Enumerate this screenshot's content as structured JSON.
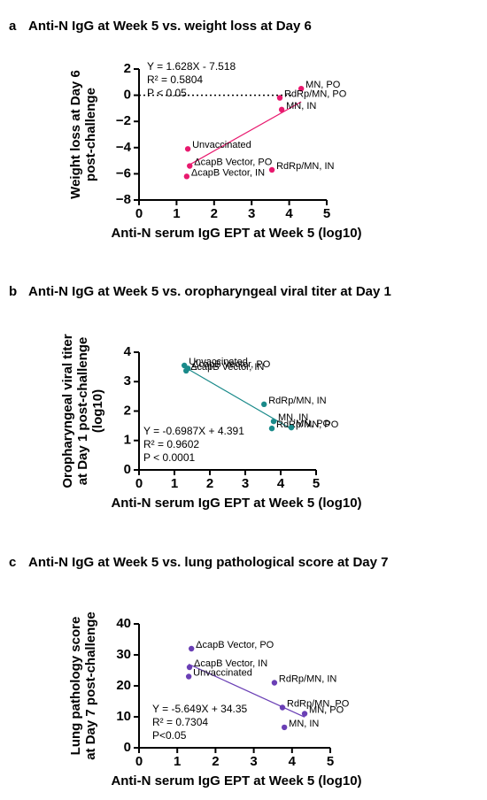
{
  "chart_data": [
    {
      "type": "scatter",
      "panel": "a",
      "title": "Anti-N IgG at Week 5 vs. weight loss at Day 6",
      "xlabel": "Anti-N serum IgG EPT at Week 5 (log10)",
      "ylabel": [
        "Weight loss at Day 6",
        "post-challenge"
      ],
      "point_labels": [
        "MN, PO",
        "RdRp/MN, PO",
        "MN, IN",
        "Unvaccinated",
        "ΔcapB Vector, PO",
        "ΔcapB Vector, IN",
        "RdRp/MN, IN"
      ],
      "x": [
        4.32,
        3.75,
        3.8,
        1.3,
        1.35,
        1.27,
        3.54
      ],
      "values": [
        0.5,
        -0.2,
        -1.1,
        -4.1,
        -5.4,
        -6.2,
        -5.7
      ],
      "color": "#e8196e",
      "fit_line": {
        "x": [
          1.35,
          4.32
        ],
        "y": [
          -5.3,
          -0.5
        ]
      },
      "hline": 0,
      "annotations": [
        "Y = 1.628X - 7.518",
        "R² = 0.5804",
        "P < 0.05"
      ],
      "xlim": [
        0,
        5
      ],
      "xticks": [
        0,
        1,
        2,
        3,
        4,
        5
      ],
      "ylim": [
        -8,
        2
      ],
      "yticks": [
        {
          "value": -8,
          "label": "−8"
        },
        {
          "value": -6,
          "label": "−6"
        },
        {
          "value": -4,
          "label": "−4"
        },
        {
          "value": -2,
          "label": "−2"
        },
        0,
        2
      ]
    },
    {
      "type": "scatter",
      "panel": "b",
      "title": "Anti-N IgG at Week 5 vs. oropharyngeal viral titer at Day 1",
      "xlabel": "Anti-N serum IgG EPT at Week 5 (log10)",
      "ylabel": [
        "Oropharyngeal viral titer",
        "at Day 1 post-challenge",
        "(log10)"
      ],
      "point_labels": [
        "Unvaccinated",
        "ΔcapB Vector, IN",
        "ΔcapB Vector, PO",
        "RdRp/MN, IN",
        "MN, IN",
        "RdRp/MN, PO",
        "MN, PO"
      ],
      "x": [
        1.28,
        1.33,
        1.38,
        3.53,
        3.8,
        3.75,
        4.3
      ],
      "values": [
        3.55,
        3.37,
        3.45,
        2.23,
        1.65,
        1.41,
        1.44
      ],
      "color": "#1a8a8a",
      "fit_line": {
        "x": [
          1.28,
          4.3
        ],
        "y": [
          3.5,
          1.39
        ]
      },
      "annotations": [
        "Y = -0.6987X + 4.391",
        "R² = 0.9602",
        "P < 0.0001"
      ],
      "xlim": [
        0,
        5
      ],
      "xticks": [
        0,
        1,
        2,
        3,
        4,
        5
      ],
      "ylim": [
        0,
        4
      ],
      "yticks": [
        0,
        1,
        2,
        3,
        4
      ]
    },
    {
      "type": "scatter",
      "panel": "c",
      "title": "Anti-N IgG at Week 5 vs. lung pathological score at Day 7",
      "xlabel": "Anti-N serum IgG EPT at Week 5 (log10)",
      "ylabel": [
        "Lung pathology score",
        "at Day 7 post-challenge"
      ],
      "point_labels": [
        "ΔcapB Vector, PO",
        "ΔcapB Vector, IN",
        "Unvaccinated",
        "RdRp/MN, IN",
        "RdRp/MN, PO",
        "MN, PO",
        "MN, IN"
      ],
      "x": [
        1.37,
        1.32,
        1.3,
        3.54,
        3.75,
        4.33,
        3.8
      ],
      "values": [
        32,
        26,
        23,
        21,
        13,
        11,
        6.6
      ],
      "color": "#6a3fb5",
      "fit_line": {
        "x": [
          1.3,
          4.33
        ],
        "y": [
          27,
          9.9
        ]
      },
      "annotations": [
        "Y = -5.649X + 34.35",
        "R² = 0.7304",
        "P<0.05"
      ],
      "xlim": [
        0,
        5
      ],
      "xticks": [
        0,
        1,
        2,
        3,
        4,
        5
      ],
      "ylim": [
        0,
        40
      ],
      "yticks": [
        0,
        10,
        20,
        30,
        40
      ]
    }
  ]
}
